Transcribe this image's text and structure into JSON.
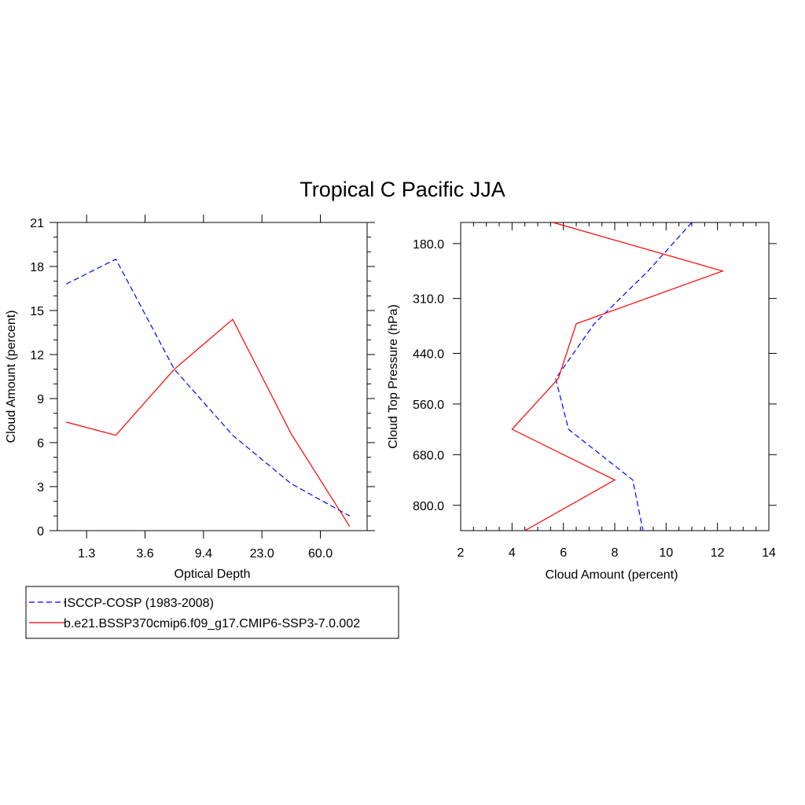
{
  "title": "Tropical C Pacific JJA",
  "colors": {
    "obs": "#0000ff",
    "model": "#ff0000",
    "axis": "#000000"
  },
  "legend": {
    "entries": [
      {
        "label": "ISCCP-COSP (1983-2008)",
        "color": "#0000ff",
        "dash": "dashed"
      },
      {
        "label": "b.e21.BSSP370cmip6.f09_g17.CMIP6-SSP3-7.0.002",
        "color": "#ff0000",
        "dash": "solid"
      }
    ]
  },
  "chart_data": [
    {
      "type": "line",
      "xlabel": "Optical Depth",
      "ylabel": "Cloud Amount (percent)",
      "x_tick_labels": [
        "1.3",
        "3.6",
        "9.4",
        "23.0",
        "60.0"
      ],
      "ylim": [
        0,
        21
      ],
      "y_ticks": [
        0,
        3,
        6,
        9,
        12,
        15,
        18,
        21
      ],
      "grid": false,
      "series": [
        {
          "name": "ISCCP-COSP (1983-2008)",
          "color": "#0000ff",
          "dash": "dashed",
          "x": [
            0.3,
            2,
            4,
            6,
            8,
            10
          ],
          "values": [
            16.8,
            18.5,
            11.0,
            6.5,
            3.2,
            1.0
          ]
        },
        {
          "name": "b.e21.BSSP370cmip6.f09_g17.CMIP6-SSP3-7.0.002",
          "color": "#ff0000",
          "dash": "solid",
          "x": [
            0.3,
            2,
            4,
            6,
            8,
            10
          ],
          "values": [
            7.4,
            6.5,
            11.0,
            14.4,
            6.6,
            0.3
          ]
        }
      ]
    },
    {
      "type": "line",
      "xlabel": "Cloud Amount (percent)",
      "ylabel": "Cloud Top Pressure (hPa)",
      "xlim": [
        2,
        14
      ],
      "x_ticks": [
        2,
        4,
        6,
        8,
        10,
        12,
        14
      ],
      "y_tick_labels": [
        "180.0",
        "310.0",
        "440.0",
        "560.0",
        "680.0",
        "800.0"
      ],
      "y_tick_values": [
        180,
        310,
        440,
        560,
        680,
        800
      ],
      "ylim": [
        860,
        130
      ],
      "grid": false,
      "series": [
        {
          "name": "ISCCP-COSP (1983-2008)",
          "color": "#0000ff",
          "dash": "dashed",
          "x": [
            11.0,
            9.3,
            7.2,
            5.7,
            6.2,
            8.7,
            9.1
          ],
          "y": [
            130,
            245,
            370,
            500,
            620,
            740,
            860
          ]
        },
        {
          "name": "b.e21.BSSP370cmip6.f09_g17.CMIP6-SSP3-7.0.002",
          "color": "#ff0000",
          "dash": "solid",
          "x": [
            5.6,
            12.2,
            6.5,
            5.8,
            4.0,
            8.0,
            4.5
          ],
          "y": [
            130,
            245,
            370,
            500,
            620,
            740,
            860
          ]
        }
      ]
    }
  ]
}
